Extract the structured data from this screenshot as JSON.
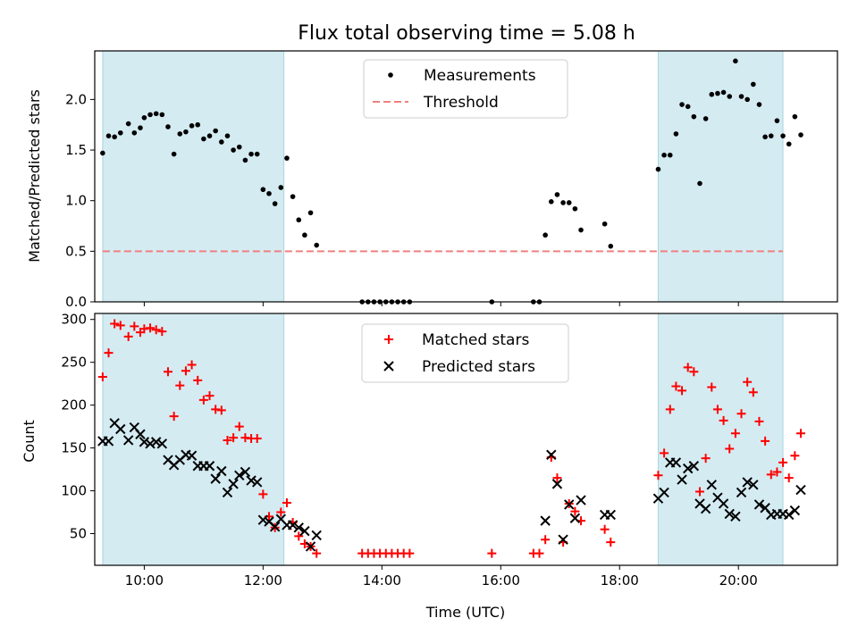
{
  "figure": {
    "title": "Flux total observing time = 5.08 h"
  },
  "chart_data": [
    {
      "type": "scatter",
      "panel": "top",
      "ylabel": "Matched/Predicted stars",
      "xlim": [
        "09:10",
        "21:40"
      ],
      "ylim": [
        0,
        2.48
      ],
      "yticks": [
        "0.0",
        "0.5",
        "1.0",
        "1.5",
        "2.0"
      ],
      "grid": false,
      "legend_position": "upper center",
      "legend": [
        {
          "label": "Measurements",
          "marker": "dot",
          "color": "#000000"
        },
        {
          "label": "Threshold",
          "marker": "dashed-line",
          "color": "#f08080"
        }
      ],
      "shaded_intervals": [
        [
          "09:18",
          "12:21"
        ],
        [
          "18:39",
          "20:45"
        ]
      ],
      "threshold": {
        "y": 0.5,
        "x_range": [
          "09:18",
          "20:45"
        ]
      },
      "series": [
        {
          "name": "Measurements",
          "points": [
            [
              "09:18",
              1.47
            ],
            [
              "09:24",
              1.64
            ],
            [
              "09:30",
              1.63
            ],
            [
              "09:36",
              1.67
            ],
            [
              "09:44",
              1.76
            ],
            [
              "09:50",
              1.67
            ],
            [
              "09:56",
              1.72
            ],
            [
              "10:00",
              1.82
            ],
            [
              "10:06",
              1.85
            ],
            [
              "10:12",
              1.86
            ],
            [
              "10:18",
              1.85
            ],
            [
              "10:24",
              1.73
            ],
            [
              "10:30",
              1.46
            ],
            [
              "10:36",
              1.66
            ],
            [
              "10:42",
              1.68
            ],
            [
              "10:48",
              1.74
            ],
            [
              "10:54",
              1.75
            ],
            [
              "11:00",
              1.61
            ],
            [
              "11:06",
              1.64
            ],
            [
              "11:12",
              1.69
            ],
            [
              "11:18",
              1.58
            ],
            [
              "11:24",
              1.64
            ],
            [
              "11:30",
              1.5
            ],
            [
              "11:36",
              1.53
            ],
            [
              "11:42",
              1.4
            ],
            [
              "11:48",
              1.46
            ],
            [
              "11:54",
              1.46
            ],
            [
              "12:00",
              1.11
            ],
            [
              "12:06",
              1.07
            ],
            [
              "12:12",
              0.97
            ],
            [
              "12:18",
              1.13
            ],
            [
              "12:24",
              1.42
            ],
            [
              "12:30",
              1.04
            ],
            [
              "12:36",
              0.81
            ],
            [
              "12:42",
              0.66
            ],
            [
              "12:48",
              0.88
            ],
            [
              "12:54",
              0.56
            ],
            [
              "13:40",
              0.0
            ],
            [
              "13:46",
              0.0
            ],
            [
              "13:52",
              0.0
            ],
            [
              "13:58",
              0.0
            ],
            [
              "14:04",
              0.0
            ],
            [
              "14:10",
              0.0
            ],
            [
              "14:16",
              0.0
            ],
            [
              "14:22",
              0.0
            ],
            [
              "14:28",
              0.0
            ],
            [
              "15:51",
              0.0
            ],
            [
              "16:33",
              0.0
            ],
            [
              "16:39",
              0.0
            ],
            [
              "16:45",
              0.66
            ],
            [
              "16:51",
              0.99
            ],
            [
              "16:57",
              1.06
            ],
            [
              "17:03",
              0.98
            ],
            [
              "17:09",
              0.98
            ],
            [
              "17:15",
              0.92
            ],
            [
              "17:21",
              0.71
            ],
            [
              "17:45",
              0.77
            ],
            [
              "17:51",
              0.55
            ],
            [
              "18:39",
              1.31
            ],
            [
              "18:45",
              1.45
            ],
            [
              "18:51",
              1.45
            ],
            [
              "18:57",
              1.66
            ],
            [
              "19:03",
              1.95
            ],
            [
              "19:09",
              1.93
            ],
            [
              "19:15",
              1.83
            ],
            [
              "19:21",
              1.17
            ],
            [
              "19:27",
              1.81
            ],
            [
              "19:33",
              2.05
            ],
            [
              "19:39",
              2.06
            ],
            [
              "19:45",
              2.07
            ],
            [
              "19:51",
              2.03
            ],
            [
              "19:57",
              2.38
            ],
            [
              "20:03",
              2.03
            ],
            [
              "20:09",
              2.0
            ],
            [
              "20:15",
              2.15
            ],
            [
              "20:21",
              1.95
            ],
            [
              "20:27",
              1.63
            ],
            [
              "20:33",
              1.64
            ],
            [
              "20:39",
              1.79
            ],
            [
              "20:45",
              1.64
            ],
            [
              "20:51",
              1.56
            ],
            [
              "20:57",
              1.83
            ],
            [
              "21:03",
              1.65
            ]
          ]
        }
      ]
    },
    {
      "type": "scatter",
      "panel": "bottom",
      "xlabel": "Time (UTC)",
      "ylabel": "Count",
      "xlim": [
        "09:10",
        "21:40"
      ],
      "ylim": [
        13,
        307
      ],
      "xticks": [
        "10:00",
        "12:00",
        "14:00",
        "16:00",
        "18:00",
        "20:00"
      ],
      "yticks": [
        "50",
        "100",
        "150",
        "200",
        "250",
        "300"
      ],
      "grid": false,
      "legend_position": "upper center",
      "legend": [
        {
          "label": "Matched stars",
          "marker": "plus",
          "color": "#ff0000"
        },
        {
          "label": "Predicted stars",
          "marker": "x",
          "color": "#000000"
        }
      ],
      "shaded_intervals": [
        [
          "09:18",
          "12:21"
        ],
        [
          "18:39",
          "20:45"
        ]
      ],
      "series": [
        {
          "name": "Matched stars",
          "points": [
            [
              "09:18",
              233
            ],
            [
              "09:24",
              261
            ],
            [
              "09:30",
              295
            ],
            [
              "09:36",
              293
            ],
            [
              "09:44",
              280
            ],
            [
              "09:50",
              292
            ],
            [
              "09:56",
              285
            ],
            [
              "10:00",
              289
            ],
            [
              "10:06",
              290
            ],
            [
              "10:12",
              288
            ],
            [
              "10:18",
              286
            ],
            [
              "10:24",
              239
            ],
            [
              "10:30",
              187
            ],
            [
              "10:36",
              223
            ],
            [
              "10:42",
              240
            ],
            [
              "10:48",
              247
            ],
            [
              "10:54",
              229
            ],
            [
              "11:00",
              206
            ],
            [
              "11:06",
              211
            ],
            [
              "11:12",
              195
            ],
            [
              "11:18",
              194
            ],
            [
              "11:24",
              159
            ],
            [
              "11:30",
              162
            ],
            [
              "11:36",
              175
            ],
            [
              "11:42",
              162
            ],
            [
              "11:48",
              161
            ],
            [
              "11:54",
              161
            ],
            [
              "12:00",
              96
            ],
            [
              "12:06",
              70
            ],
            [
              "12:12",
              57
            ],
            [
              "12:18",
              75
            ],
            [
              "12:24",
              86
            ],
            [
              "12:30",
              63
            ],
            [
              "12:36",
              47
            ],
            [
              "12:42",
              38
            ],
            [
              "12:48",
              35
            ],
            [
              "12:54",
              27
            ],
            [
              "13:40",
              27
            ],
            [
              "13:46",
              27
            ],
            [
              "13:52",
              27
            ],
            [
              "13:58",
              27
            ],
            [
              "14:04",
              27
            ],
            [
              "14:10",
              27
            ],
            [
              "14:16",
              27
            ],
            [
              "14:22",
              27
            ],
            [
              "14:28",
              27
            ],
            [
              "15:51",
              27
            ],
            [
              "16:33",
              27
            ],
            [
              "16:39",
              27
            ],
            [
              "16:45",
              43
            ],
            [
              "16:51",
              139
            ],
            [
              "16:57",
              115
            ],
            [
              "17:03",
              40
            ],
            [
              "17:09",
              85
            ],
            [
              "17:15",
              76
            ],
            [
              "17:21",
              65
            ],
            [
              "17:45",
              55
            ],
            [
              "17:51",
              40
            ],
            [
              "18:39",
              118
            ],
            [
              "18:45",
              144
            ],
            [
              "18:51",
              195
            ],
            [
              "18:57",
              222
            ],
            [
              "19:03",
              217
            ],
            [
              "19:09",
              244
            ],
            [
              "19:15",
              239
            ],
            [
              "19:21",
              99
            ],
            [
              "19:27",
              138
            ],
            [
              "19:33",
              221
            ],
            [
              "19:39",
              195
            ],
            [
              "19:45",
              182
            ],
            [
              "19:51",
              149
            ],
            [
              "19:57",
              167
            ],
            [
              "20:03",
              190
            ],
            [
              "20:09",
              227
            ],
            [
              "20:15",
              215
            ],
            [
              "20:21",
              181
            ],
            [
              "20:27",
              158
            ],
            [
              "20:33",
              119
            ],
            [
              "20:39",
              122
            ],
            [
              "20:45",
              133
            ],
            [
              "20:51",
              115
            ],
            [
              "20:57",
              141
            ],
            [
              "21:03",
              167
            ]
          ]
        },
        {
          "name": "Predicted stars",
          "points": [
            [
              "09:18",
              158
            ],
            [
              "09:24",
              158
            ],
            [
              "09:30",
              179
            ],
            [
              "09:36",
              172
            ],
            [
              "09:44",
              159
            ],
            [
              "09:50",
              174
            ],
            [
              "09:56",
              166
            ],
            [
              "10:00",
              157
            ],
            [
              "10:06",
              155
            ],
            [
              "10:12",
              157
            ],
            [
              "10:18",
              155
            ],
            [
              "10:24",
              136
            ],
            [
              "10:30",
              130
            ],
            [
              "10:36",
              136
            ],
            [
              "10:42",
              142
            ],
            [
              "10:48",
              141
            ],
            [
              "10:54",
              129
            ],
            [
              "11:00",
              129
            ],
            [
              "11:06",
              129
            ],
            [
              "11:12",
              114
            ],
            [
              "11:18",
              123
            ],
            [
              "11:24",
              98
            ],
            [
              "11:30",
              108
            ],
            [
              "11:36",
              118
            ],
            [
              "11:42",
              122
            ],
            [
              "11:48",
              112
            ],
            [
              "11:54",
              110
            ],
            [
              "12:00",
              66
            ],
            [
              "12:06",
              64
            ],
            [
              "12:12",
              58
            ],
            [
              "12:18",
              67
            ],
            [
              "12:24",
              60
            ],
            [
              "12:30",
              60
            ],
            [
              "12:36",
              57
            ],
            [
              "12:42",
              53
            ],
            [
              "12:48",
              35
            ],
            [
              "12:54",
              48
            ],
            [
              "16:45",
              65
            ],
            [
              "16:51",
              142
            ],
            [
              "16:57",
              108
            ],
            [
              "17:03",
              43
            ],
            [
              "17:09",
              84
            ],
            [
              "17:15",
              68
            ],
            [
              "17:21",
              89
            ],
            [
              "17:45",
              72
            ],
            [
              "17:51",
              72
            ],
            [
              "18:39",
              91
            ],
            [
              "18:45",
              98
            ],
            [
              "18:51",
              133
            ],
            [
              "18:57",
              133
            ],
            [
              "19:03",
              113
            ],
            [
              "19:09",
              126
            ],
            [
              "19:15",
              129
            ],
            [
              "19:21",
              85
            ],
            [
              "19:27",
              79
            ],
            [
              "19:33",
              107
            ],
            [
              "19:39",
              92
            ],
            [
              "19:45",
              85
            ],
            [
              "19:51",
              73
            ],
            [
              "19:57",
              70
            ],
            [
              "20:03",
              98
            ],
            [
              "20:09",
              110
            ],
            [
              "20:15",
              107
            ],
            [
              "20:21",
              84
            ],
            [
              "20:27",
              80
            ],
            [
              "20:33",
              72
            ],
            [
              "20:39",
              73
            ],
            [
              "20:45",
              73
            ],
            [
              "20:51",
              72
            ],
            [
              "20:57",
              77
            ],
            [
              "21:03",
              101
            ]
          ]
        }
      ]
    }
  ]
}
